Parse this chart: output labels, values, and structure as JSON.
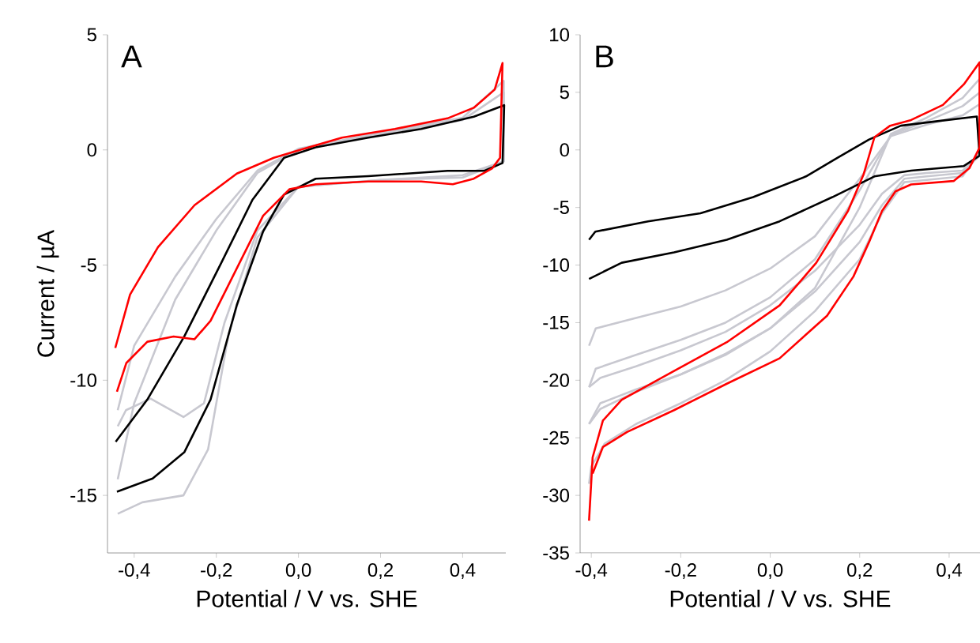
{
  "chart_data": [
    {
      "type": "line",
      "annotations": [
        "A"
      ],
      "xlabel": "Potential / V vs. SHE",
      "ylabel": "Current / µA",
      "xlim": [
        -0.465,
        0.505
      ],
      "ylim": [
        -17.5,
        5
      ],
      "xticks": [
        {
          "value": -0.4,
          "label": "-0,4"
        },
        {
          "value": -0.2,
          "label": "-0,2"
        },
        {
          "value": 0.0,
          "label": "0,0"
        },
        {
          "value": 0.2,
          "label": "0,2"
        },
        {
          "value": 0.4,
          "label": "0,4"
        }
      ],
      "yticks": [
        -15,
        -10,
        -5,
        0,
        5
      ],
      "series": [
        {
          "color": "#c8c8d0",
          "x": [
            -0.44,
            -0.4,
            -0.3,
            -0.2,
            -0.1,
            0.0,
            0.2,
            0.4,
            0.5,
            0.5,
            0.4,
            0.2,
            0.0,
            -0.1,
            -0.18,
            -0.23,
            -0.28,
            -0.36,
            -0.42,
            -0.44
          ],
          "values": [
            -11.3,
            -8.5,
            -5.5,
            -3.0,
            -0.9,
            0.05,
            0.75,
            1.4,
            3.0,
            -0.5,
            -1.2,
            -1.3,
            -1.6,
            -3.5,
            -7.5,
            -11.0,
            -11.6,
            -10.8,
            -11.3,
            -12
          ]
        },
        {
          "color": "#c8c8d0",
          "x": [
            -0.44,
            -0.4,
            -0.3,
            -0.2,
            -0.1,
            0.0,
            0.2,
            0.4,
            0.5,
            0.5,
            0.4,
            0.2,
            0.0,
            -0.1,
            -0.17,
            -0.22,
            -0.28,
            -0.38,
            -0.44
          ],
          "values": [
            -14.3,
            -11,
            -6.5,
            -3.5,
            -1.0,
            0,
            0.7,
            1.3,
            2.5,
            -0.5,
            -1.1,
            -1.3,
            -1.6,
            -3.8,
            -8,
            -13,
            -15.0,
            -15.3,
            -15.8
          ]
        },
        {
          "color": "#000000",
          "x": [
            -0.445,
            -0.368,
            -0.278,
            -0.188,
            -0.112,
            -0.035,
            0.042,
            0.17,
            0.299,
            0.427,
            0.501,
            0.497,
            0.453,
            0.363,
            0.17,
            0.042,
            -0.035,
            -0.086,
            -0.15,
            -0.214,
            -0.278,
            -0.355,
            -0.442
          ],
          "values": [
            -12.67,
            -10.84,
            -8.1,
            -4.91,
            -2.17,
            -0.34,
            0.11,
            0.53,
            0.91,
            1.44,
            1.94,
            -0.57,
            -0.91,
            -0.91,
            -1.14,
            -1.25,
            -1.94,
            -3.54,
            -6.73,
            -10.84,
            -13.13,
            -14.27,
            -14.84
          ]
        },
        {
          "color": "#ff0000",
          "x": [
            -0.446,
            -0.41,
            -0.342,
            -0.253,
            -0.15,
            -0.06,
            0.004,
            0.106,
            0.235,
            0.363,
            0.427,
            0.478,
            0.497,
            0.491,
            0.472,
            0.427,
            0.376,
            0.299,
            0.17,
            0.042,
            -0.022,
            -0.086,
            -0.15,
            -0.214,
            -0.253,
            -0.304,
            -0.368,
            -0.419,
            -0.442
          ],
          "values": [
            -8.6,
            -6.28,
            -4.22,
            -2.4,
            -1.03,
            -0.34,
            0,
            0.53,
            0.91,
            1.37,
            1.83,
            2.62,
            3.77,
            -0.34,
            -0.8,
            -1.25,
            -1.49,
            -1.37,
            -1.37,
            -1.49,
            -1.71,
            -2.86,
            -5.14,
            -7.42,
            -8.22,
            -8.1,
            -8.33,
            -9.25,
            -10.5
          ]
        }
      ]
    },
    {
      "type": "line",
      "annotations": [
        "B"
      ],
      "xlabel": "Potential / V vs. SHE",
      "xlim": [
        -0.425,
        0.469
      ],
      "ylim": [
        -35,
        10
      ],
      "xticks": [
        {
          "value": -0.4,
          "label": "-0,4"
        },
        {
          "value": -0.2,
          "label": "-0,2"
        },
        {
          "value": 0.0,
          "label": "0,0"
        },
        {
          "value": 0.2,
          "label": "0,2"
        },
        {
          "value": 0.4,
          "label": "0,4"
        }
      ],
      "yticks": [
        -35,
        -30,
        -25,
        -20,
        -15,
        -10,
        -5,
        0,
        5,
        10
      ],
      "series": [
        {
          "color": "#c8c8d0",
          "x": [
            -0.405,
            -0.39,
            -0.3,
            -0.2,
            -0.1,
            0.0,
            0.1,
            0.2,
            0.27,
            0.35,
            0.43,
            0.469,
            0.469,
            0.43,
            0.35,
            0.3,
            0.25,
            0.2,
            0.1,
            0.0,
            -0.1,
            -0.2,
            -0.3,
            -0.38,
            -0.405
          ],
          "values": [
            -17.0,
            -15.5,
            -14.6,
            -13.6,
            -12.2,
            -10.3,
            -7.5,
            -2.5,
            1.2,
            2.2,
            3.0,
            4.0,
            -0.5,
            -1.8,
            -2.0,
            -2.2,
            -3.8,
            -6.5,
            -10.5,
            -13.5,
            -15.8,
            -17.4,
            -18.8,
            -19.8,
            -20.6
          ]
        },
        {
          "color": "#c8c8d0",
          "x": [
            -0.405,
            -0.39,
            -0.3,
            -0.2,
            -0.1,
            0.0,
            0.1,
            0.2,
            0.27,
            0.35,
            0.43,
            0.469,
            0.469,
            0.43,
            0.35,
            0.3,
            0.25,
            0.2,
            0.1,
            0.0,
            -0.1,
            -0.2,
            -0.3,
            -0.38,
            -0.405
          ],
          "values": [
            -20.6,
            -19.0,
            -17.8,
            -16.5,
            -15.0,
            -12.8,
            -9.5,
            -3.5,
            1.3,
            2.5,
            3.8,
            5.0,
            -0.3,
            -2.0,
            -2.3,
            -2.5,
            -4.8,
            -8.0,
            -12.3,
            -15.5,
            -17.8,
            -19.5,
            -21.0,
            -22.5,
            -23.8
          ]
        },
        {
          "color": "#c8c8d0",
          "x": [
            -0.405,
            -0.38,
            -0.3,
            -0.2,
            -0.1,
            0.0,
            0.1,
            0.2,
            0.27,
            0.35,
            0.43,
            0.469,
            0.469,
            0.43,
            0.35,
            0.3,
            0.25,
            0.2,
            0.1,
            0.0,
            -0.1,
            -0.2,
            -0.3,
            -0.37,
            -0.4,
            -0.405
          ],
          "values": [
            -23.8,
            -22.0,
            -20.8,
            -19.5,
            -17.7,
            -15.5,
            -12.0,
            -5.0,
            1.4,
            2.8,
            4.5,
            6.2,
            -0.2,
            -2.3,
            -2.6,
            -2.8,
            -5.5,
            -9.5,
            -14.0,
            -17.5,
            -20.0,
            -22.0,
            -23.8,
            -25.5,
            -27.5,
            -29.0
          ]
        },
        {
          "color": "#000000",
          "x": [
            -0.405,
            -0.391,
            -0.273,
            -0.156,
            -0.038,
            0.08,
            0.15,
            0.221,
            0.292,
            0.374,
            0.462,
            0.468,
            0.433,
            0.315,
            0.233,
            0.139,
            0.021,
            -0.097,
            -0.215,
            -0.332,
            -0.405
          ],
          "values": [
            -7.8,
            -7.1,
            -6.2,
            -5.5,
            -4.1,
            -2.3,
            -0.7,
            0.9,
            2.1,
            2.5,
            2.9,
            -0.5,
            -1.4,
            -1.8,
            -2.3,
            -4.1,
            -6.2,
            -7.8,
            -8.9,
            -9.8,
            -11.2
          ]
        },
        {
          "color": "#ff0000",
          "x": [
            -0.405,
            -0.397,
            -0.374,
            -0.332,
            -0.215,
            -0.097,
            0.021,
            0.103,
            0.174,
            0.209,
            0.233,
            0.268,
            0.315,
            0.386,
            0.433,
            0.468,
            0.468,
            0.445,
            0.41,
            0.315,
            0.28,
            0.25,
            0.221,
            0.186,
            0.127,
            0.021,
            -0.097,
            -0.215,
            -0.32,
            -0.374,
            -0.397
          ],
          "values": [
            -32.2,
            -26.7,
            -23.5,
            -21.7,
            -19.2,
            -16.7,
            -13.5,
            -9.8,
            -5.3,
            -2.1,
            1.1,
            2.1,
            2.6,
            3.9,
            5.7,
            7.6,
            0.2,
            -1.6,
            -2.7,
            -3.0,
            -3.6,
            -5.3,
            -8.0,
            -11.0,
            -14.4,
            -18.1,
            -20.3,
            -22.6,
            -24.5,
            -25.8,
            -28.1
          ]
        }
      ]
    }
  ]
}
